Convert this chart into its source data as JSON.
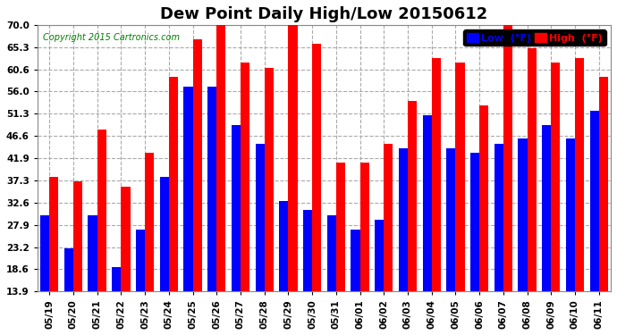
{
  "title": "Dew Point Daily High/Low 20150612",
  "copyright": "Copyright 2015 Cartronics.com",
  "dates": [
    "05/19",
    "05/20",
    "05/21",
    "05/22",
    "05/23",
    "05/24",
    "05/25",
    "05/26",
    "05/27",
    "05/28",
    "05/29",
    "05/30",
    "05/31",
    "06/01",
    "06/02",
    "06/03",
    "06/04",
    "06/05",
    "06/06",
    "06/07",
    "06/08",
    "06/09",
    "06/10",
    "06/11"
  ],
  "low_values": [
    30,
    23,
    30,
    19,
    27,
    38,
    57,
    57,
    49,
    45,
    33,
    31,
    30,
    27,
    29,
    44,
    51,
    44,
    43,
    45,
    46,
    49,
    46,
    52
  ],
  "high_values": [
    38,
    37,
    48,
    36,
    43,
    59,
    67,
    72,
    62,
    61,
    70,
    66,
    41,
    41,
    45,
    54,
    63,
    62,
    53,
    70,
    65,
    62,
    63,
    59
  ],
  "low_color": "#0000ff",
  "high_color": "#ff0000",
  "bg_color": "#ffffff",
  "plot_bg_color": "#ffffff",
  "grid_color": "#aaaaaa",
  "yticks": [
    13.9,
    18.6,
    23.2,
    27.9,
    32.6,
    37.3,
    41.9,
    46.6,
    51.3,
    56.0,
    60.6,
    65.3,
    70.0
  ],
  "ymin": 13.9,
  "ymax": 70.0,
  "bar_width": 0.38,
  "title_fontsize": 13,
  "tick_fontsize": 7.5,
  "legend_fontsize": 8
}
